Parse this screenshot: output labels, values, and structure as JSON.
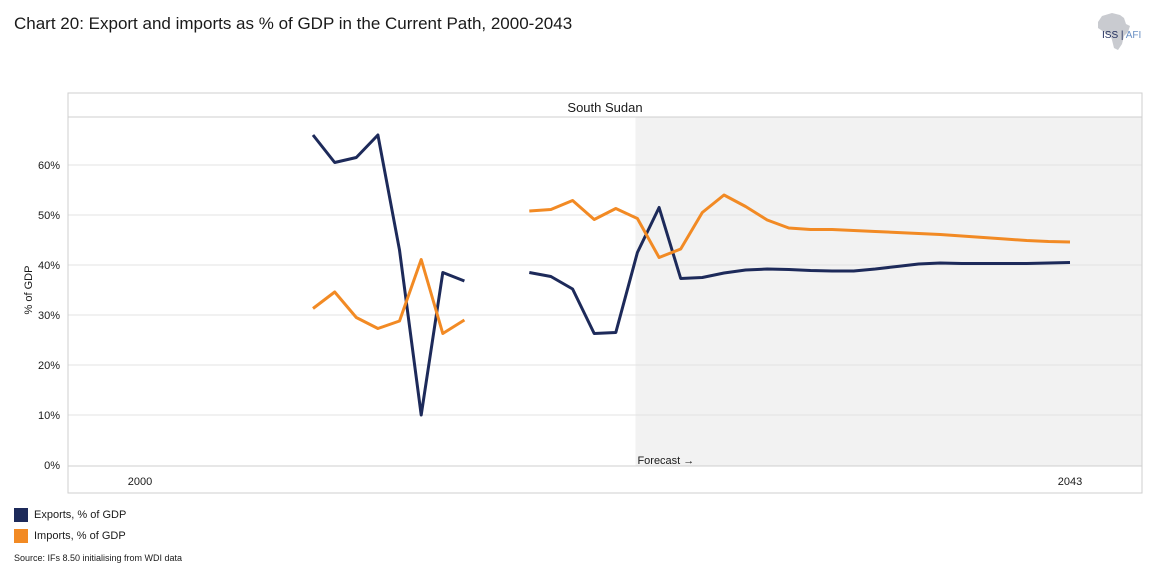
{
  "title": "Chart 20: Export and imports as % of GDP in the Current Path, 2000-2043",
  "logo": {
    "main": "ISS",
    "sub": "AFI"
  },
  "source": "Source: IFs 8.50 initialising from WDI data",
  "colors": {
    "exports": "#1d2a5a",
    "imports": "#f28a24",
    "forecast_bg": "#f2f2f2",
    "grid": "#e3e3e3"
  },
  "chart_data": {
    "type": "line",
    "panel_title": "South Sudan",
    "ylabel": "% of GDP",
    "xlabel": "",
    "ylim": [
      0,
      70
    ],
    "yticks": [
      0,
      10,
      20,
      30,
      40,
      50,
      60
    ],
    "ytick_labels": [
      "0%",
      "10%",
      "20%",
      "30%",
      "40%",
      "50%",
      "60%"
    ],
    "xlim": [
      2000,
      2043
    ],
    "xtick_labels": [
      "2000",
      "2043"
    ],
    "forecast_start": 2023,
    "forecast_label": "Forecast →",
    "series": [
      {
        "name": "Exports, % of GDP",
        "color": "#1d2a5a",
        "segments": [
          {
            "x": [
              2008,
              2009,
              2010,
              2011,
              2012,
              2013,
              2014,
              2015
            ],
            "y": [
              66,
              60.5,
              61.5,
              66,
              43,
              10,
              38.5,
              36.8
            ]
          },
          {
            "x": [
              2018,
              2019,
              2020,
              2021,
              2022,
              2023,
              2024,
              2025,
              2026,
              2027,
              2028,
              2029,
              2030,
              2031,
              2032,
              2033,
              2034,
              2035,
              2036,
              2037,
              2038,
              2039,
              2040,
              2041,
              2042,
              2043
            ],
            "y": [
              38.5,
              37.7,
              35.2,
              26.3,
              26.5,
              42.5,
              51.5,
              37.3,
              37.5,
              38.4,
              39,
              39.2,
              39.1,
              38.9,
              38.8,
              38.8,
              39.2,
              39.7,
              40.2,
              40.4,
              40.3,
              40.3,
              40.3,
              40.3,
              40.4,
              40.5
            ]
          }
        ]
      },
      {
        "name": "Imports, % of GDP",
        "color": "#f28a24",
        "segments": [
          {
            "x": [
              2008,
              2009,
              2010,
              2011,
              2012,
              2013,
              2014,
              2015
            ],
            "y": [
              31.3,
              34.6,
              29.5,
              27.3,
              28.8,
              41.1,
              26.3,
              29
            ]
          },
          {
            "x": [
              2018,
              2019,
              2020,
              2021,
              2022,
              2023,
              2024,
              2025,
              2026,
              2027,
              2028,
              2029,
              2030,
              2031,
              2032,
              2033,
              2034,
              2035,
              2036,
              2037,
              2038,
              2039,
              2040,
              2041,
              2042,
              2043
            ],
            "y": [
              50.8,
              51.1,
              52.9,
              49.1,
              51.3,
              49.3,
              41.5,
              43.2,
              50.5,
              54,
              51.7,
              49,
              47.4,
              47.1,
              47.1,
              46.9,
              46.7,
              46.5,
              46.3,
              46.1,
              45.8,
              45.5,
              45.2,
              44.9,
              44.7,
              44.6
            ]
          }
        ]
      }
    ]
  }
}
